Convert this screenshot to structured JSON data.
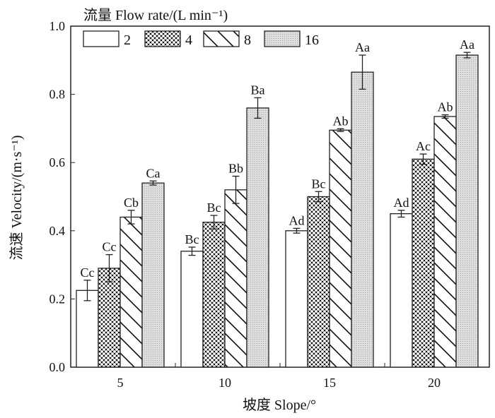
{
  "chart_data": {
    "type": "bar",
    "title": "",
    "xlabel": "坡度 Slope/°",
    "ylabel": "流速 Velocity/(m·s⁻¹)",
    "ylim": [
      0,
      1.0
    ],
    "yticks": [
      "0.0",
      "0.2",
      "0.4",
      "0.6",
      "0.8",
      "1.0"
    ],
    "categories": [
      "5",
      "10",
      "15",
      "20"
    ],
    "legend_title": "流量 Flow rate/(L min⁻¹)",
    "legend_position": "top-left",
    "series": [
      {
        "name": "2",
        "pattern": "white",
        "values": [
          0.225,
          0.34,
          0.4,
          0.45
        ],
        "errors": [
          0.03,
          0.012,
          0.007,
          0.01
        ],
        "labels": [
          "Cc",
          "Bc",
          "Ad",
          "Ad"
        ]
      },
      {
        "name": "4",
        "pattern": "crosshatch",
        "values": [
          0.29,
          0.425,
          0.5,
          0.61
        ],
        "errors": [
          0.04,
          0.02,
          0.015,
          0.015
        ],
        "labels": [
          "Cc",
          "Bc",
          "Bc",
          "Ac"
        ]
      },
      {
        "name": "8",
        "pattern": "diagonal",
        "values": [
          0.44,
          0.52,
          0.695,
          0.735
        ],
        "errors": [
          0.02,
          0.04,
          0.004,
          0.005
        ],
        "labels": [
          "Cb",
          "Bb",
          "Ab",
          "Ab"
        ]
      },
      {
        "name": "16",
        "pattern": "gray-dots",
        "values": [
          0.54,
          0.76,
          0.865,
          0.915
        ],
        "errors": [
          0.006,
          0.03,
          0.05,
          0.008
        ],
        "labels": [
          "Ca",
          "Ba",
          "Aa",
          "Aa"
        ]
      }
    ]
  }
}
